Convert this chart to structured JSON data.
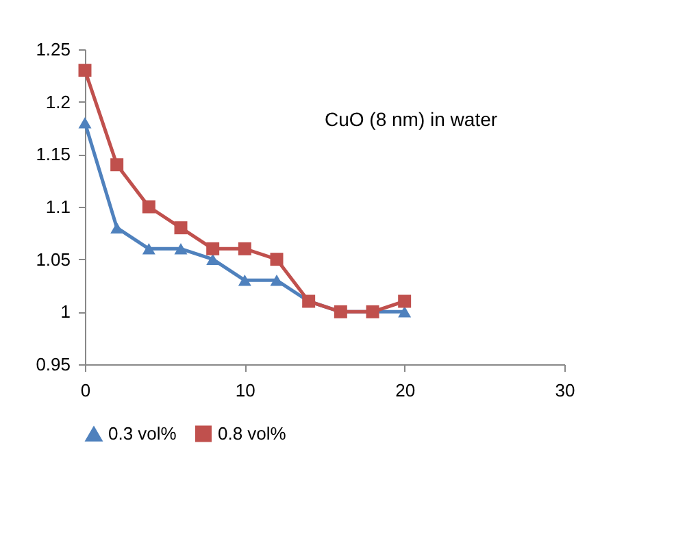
{
  "chart_data": {
    "type": "line",
    "x": [
      0,
      2,
      4,
      6,
      8,
      10,
      12,
      14,
      16,
      18,
      20
    ],
    "series": [
      {
        "name": "0.3 vol%",
        "color": "#4f81bd",
        "marker": "triangle",
        "values": [
          1.18,
          1.08,
          1.06,
          1.06,
          1.05,
          1.03,
          1.03,
          1.01,
          1.0,
          1.0,
          1.0
        ]
      },
      {
        "name": "0.8 vol%",
        "color": "#c0504d",
        "marker": "square",
        "values": [
          1.23,
          1.14,
          1.1,
          1.08,
          1.06,
          1.06,
          1.05,
          1.01,
          1.0,
          1.0,
          1.01
        ]
      }
    ],
    "xlim": [
      0,
      30
    ],
    "xticks": [
      0,
      10,
      20,
      30
    ],
    "ylim": [
      0.95,
      1.25
    ],
    "yticks": [
      0.95,
      1,
      1.05,
      1.1,
      1.15,
      1.2,
      1.25
    ],
    "annotations": [
      "CuO (8 nm) in water"
    ],
    "grid": false,
    "legend": "bottom",
    "line_style": "solid"
  }
}
